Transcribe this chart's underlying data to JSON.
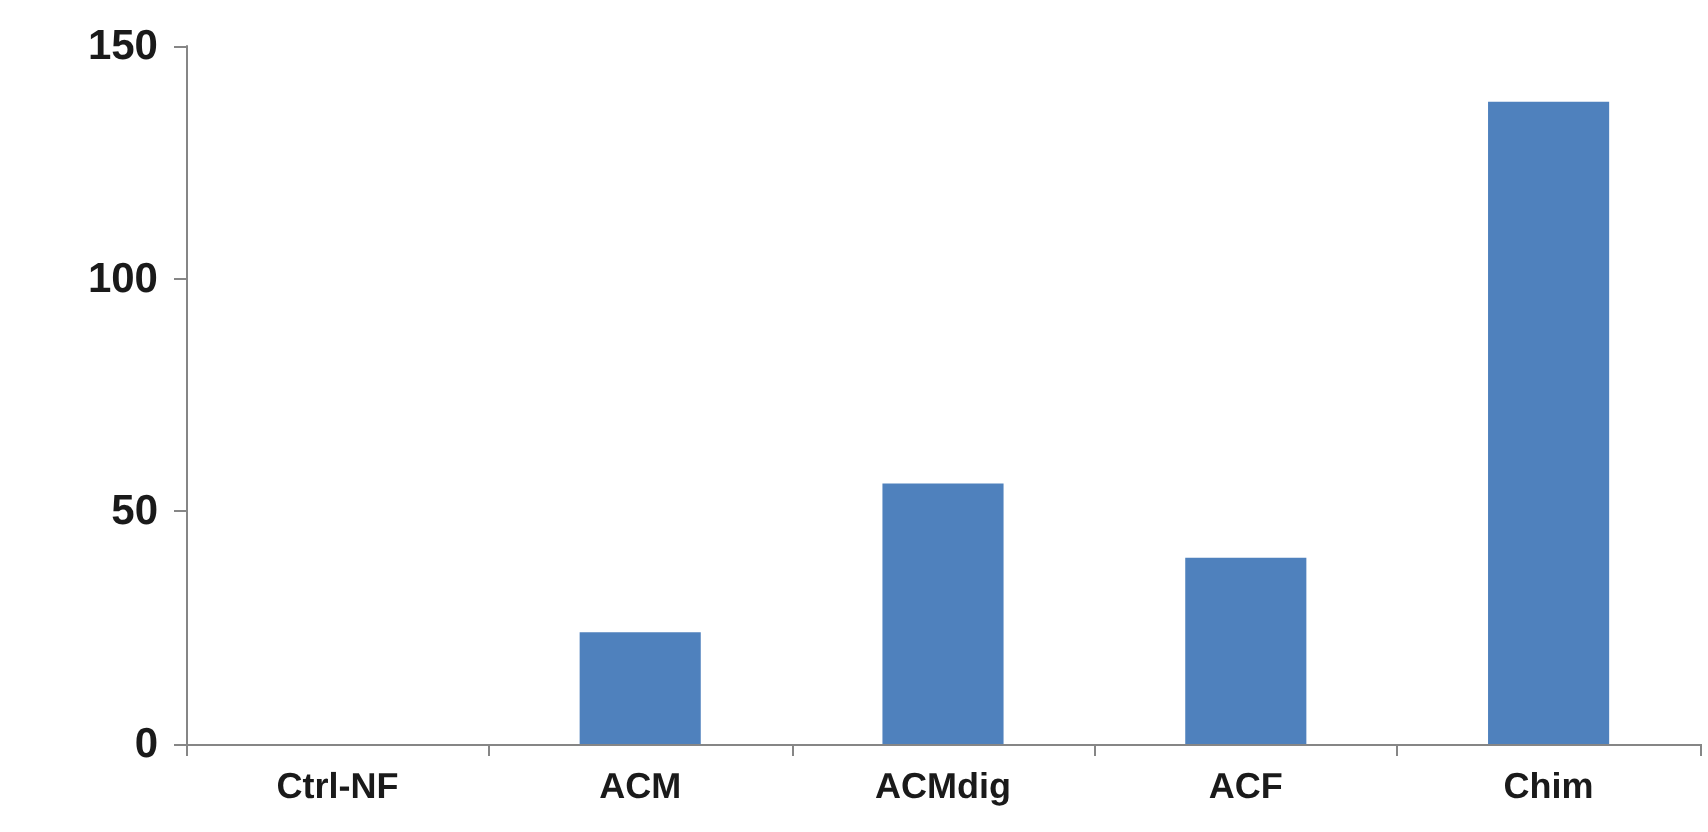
{
  "chart_data": {
    "type": "bar",
    "categories": [
      "Ctrl-NF",
      "ACM",
      "ACMdig",
      "ACF",
      "Chim"
    ],
    "values": [
      0,
      24,
      56,
      40,
      138
    ],
    "color": "#4f81bd",
    "ylim": [
      0,
      150
    ],
    "yticks": [
      0,
      50,
      100,
      150
    ],
    "grid": false
  }
}
